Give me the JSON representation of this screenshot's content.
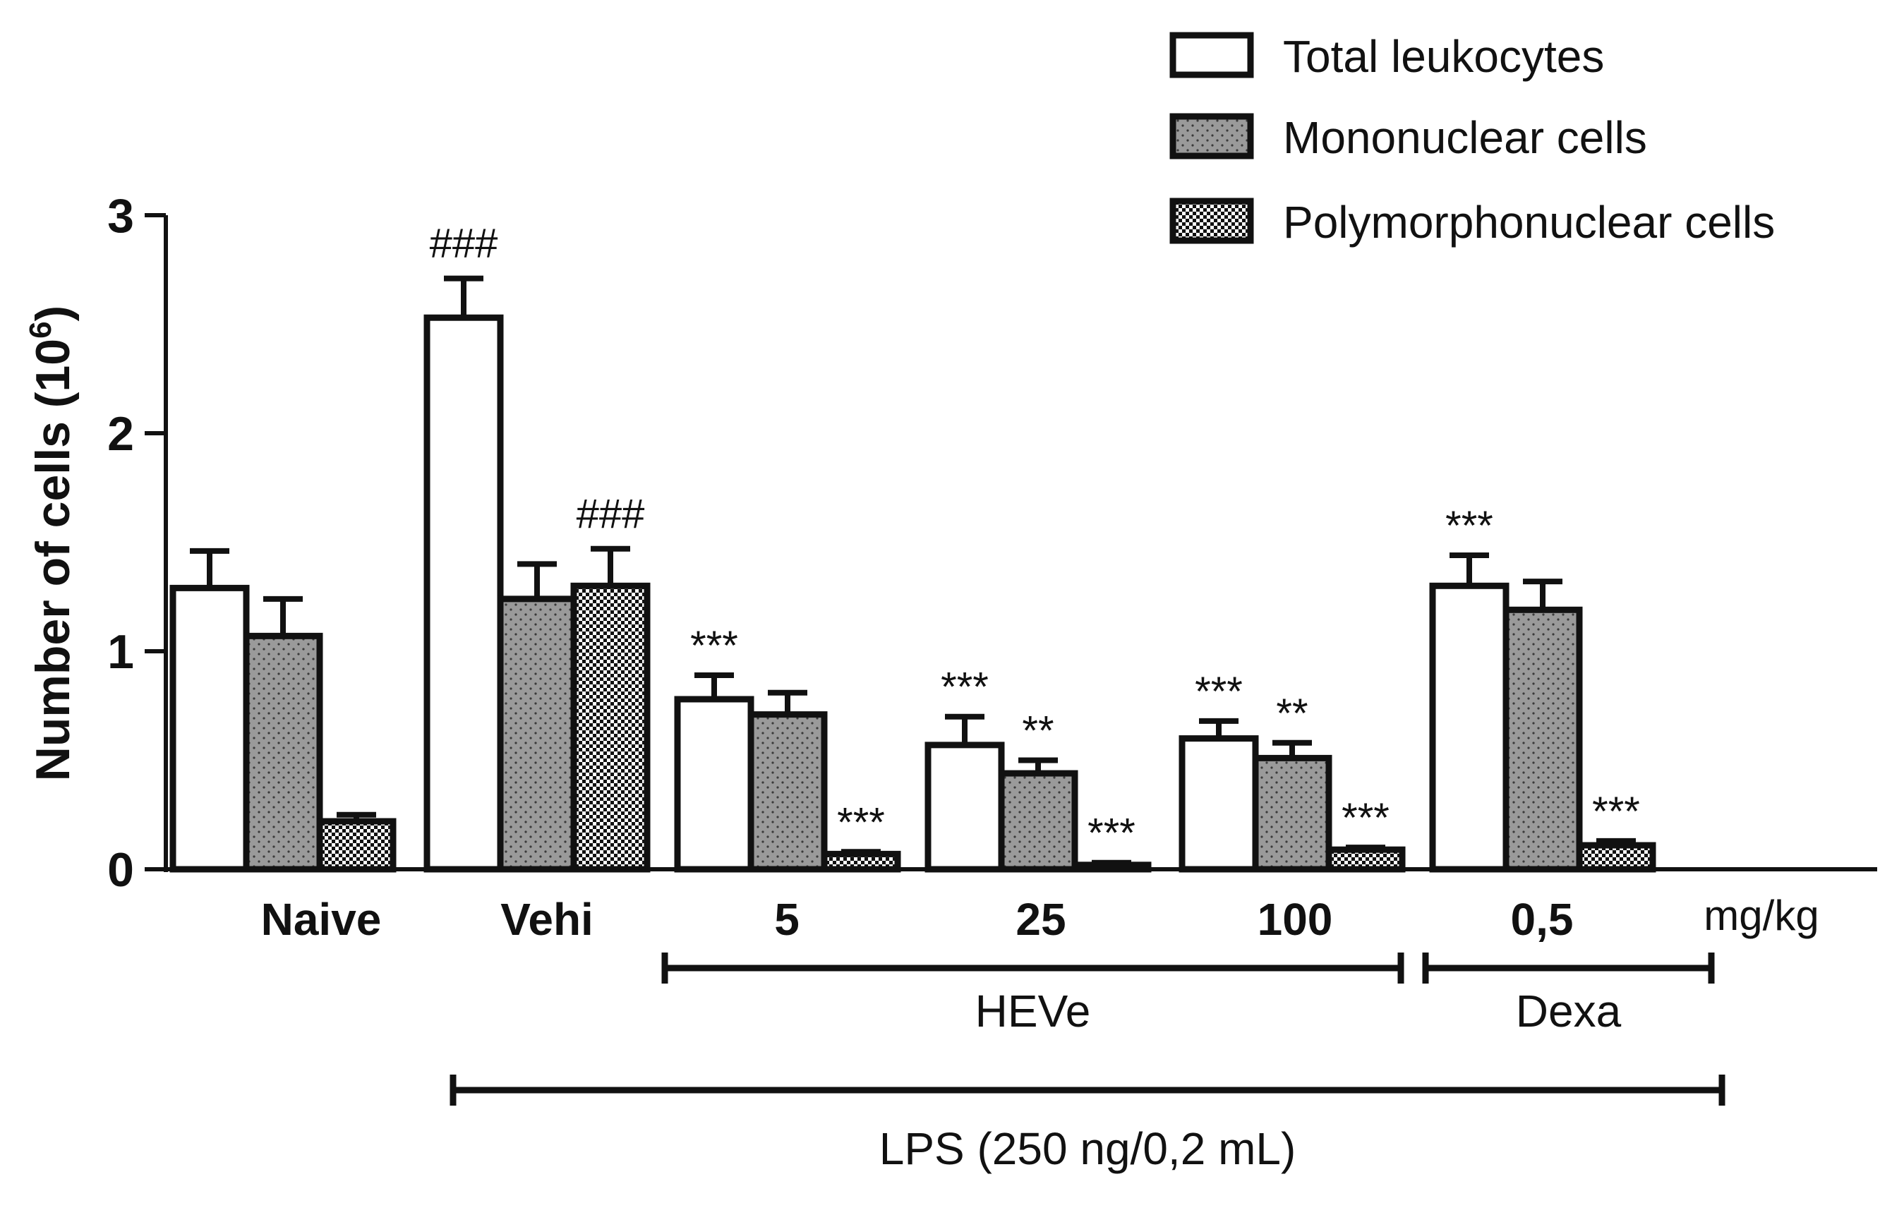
{
  "chart_data": {
    "type": "bar",
    "ylabel": "Number of cells (10",
    "ylabel_superscript": "6",
    "ylabel_close": ")",
    "ylim": [
      0,
      3
    ],
    "yticks": [
      0,
      1,
      2,
      3
    ],
    "categories": [
      "Naive",
      "Vehi",
      "5",
      "25",
      "100",
      "0,5"
    ],
    "unit_label": "mg/kg",
    "legend_position": "top-right",
    "series": [
      {
        "name": "Total leukocytes",
        "pattern": "empty",
        "values": [
          1.29,
          2.53,
          0.78,
          0.57,
          0.6,
          1.3
        ],
        "errors": [
          0.17,
          0.18,
          0.11,
          0.13,
          0.08,
          0.14
        ],
        "annotations": [
          "",
          "###",
          "***",
          "***",
          "***",
          "***"
        ]
      },
      {
        "name": "Mononuclear cells",
        "pattern": "gray-dotted",
        "values": [
          1.07,
          1.24,
          0.71,
          0.44,
          0.51,
          1.19
        ],
        "errors": [
          0.17,
          0.16,
          0.1,
          0.06,
          0.07,
          0.13
        ],
        "annotations": [
          "",
          "",
          "",
          "**",
          "**",
          ""
        ]
      },
      {
        "name": "Polymorphonuclear cells",
        "pattern": "checkered",
        "values": [
          0.22,
          1.3,
          0.07,
          0.02,
          0.09,
          0.11
        ],
        "errors": [
          0.03,
          0.17,
          0.01,
          0.01,
          0.01,
          0.02
        ],
        "annotations": [
          "",
          "###",
          "***",
          "***",
          "***",
          "***"
        ]
      }
    ],
    "group_brackets": [
      {
        "label": "HEVe",
        "from": "5",
        "to": "100",
        "level": 1
      },
      {
        "label": "Dexa",
        "from": "0,5",
        "to": "0,5",
        "level": 1
      },
      {
        "label": "LPS  (250 ng/0,2 mL)",
        "from": "Vehi",
        "to": "0,5",
        "level": 2
      }
    ],
    "colors": {
      "total": "#ffffff",
      "mononuclear": "#9a9a9a",
      "poly_base": "#ffffff",
      "poly_dots": "#111111",
      "stroke": "#111111"
    }
  }
}
